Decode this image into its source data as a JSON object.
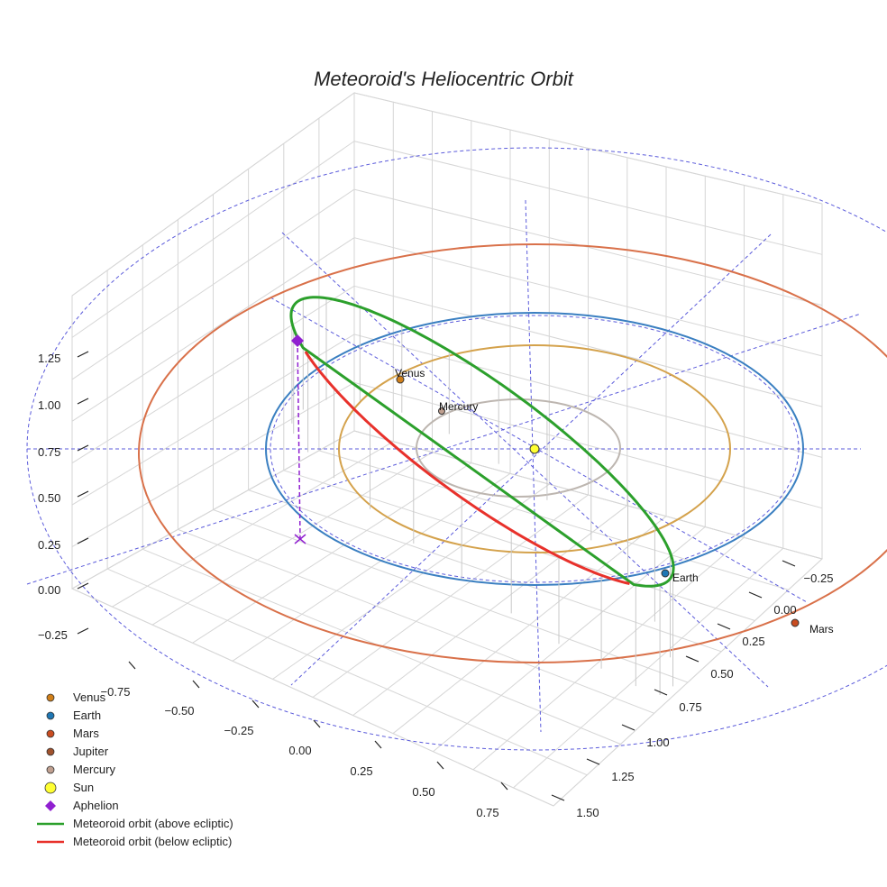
{
  "chart_data": {
    "type": "scatter3d",
    "title": "Meteoroid's Heliocentric Orbit",
    "axes": {
      "x_ticks": [
        "−0.75",
        "−0.50",
        "−0.25",
        "0.00",
        "0.25",
        "0.50",
        "0.75"
      ],
      "y_ticks": [
        "−0.25",
        "0.00",
        "0.25",
        "0.50",
        "0.75",
        "1.00",
        "1.25",
        "1.50"
      ],
      "z_ticks": [
        "−0.25",
        "0.00",
        "0.25",
        "0.50",
        "0.75",
        "1.00",
        "1.25"
      ],
      "grid": true
    },
    "orbits": [
      {
        "name": "Mercury",
        "semi_major_au": 0.387,
        "color": "#bdb6b0"
      },
      {
        "name": "Venus",
        "semi_major_au": 0.723,
        "color": "#d4a24c"
      },
      {
        "name": "Earth",
        "semi_major_au": 1.0,
        "color": "#3a7fc1"
      },
      {
        "name": "Mars",
        "semi_major_au": 1.524,
        "color": "#d9714a"
      }
    ],
    "bodies": [
      {
        "name": "Venus",
        "label": "Venus",
        "color": "#d07f1a"
      },
      {
        "name": "Mercury",
        "label": "Mercury",
        "color": "#c0a090"
      },
      {
        "name": "Earth",
        "label": "Earth",
        "color": "#1f77b4"
      },
      {
        "name": "Mars",
        "label": "Mars",
        "color": "#c94c20"
      },
      {
        "name": "Sun",
        "label": "",
        "color": "#ffff33"
      }
    ],
    "meteoroid_orbit": {
      "above_color": "#2ca02c",
      "below_color": "#e8312b",
      "aphelion_color": "#9020d0"
    },
    "legend": [
      {
        "label": "Venus",
        "symbol": "dot",
        "color": "#d07f1a"
      },
      {
        "label": "Earth",
        "symbol": "dot",
        "color": "#1f77b4"
      },
      {
        "label": "Mars",
        "symbol": "dot",
        "color": "#c94c20"
      },
      {
        "label": "Jupiter",
        "symbol": "dot",
        "color": "#a0522d"
      },
      {
        "label": "Mercury",
        "symbol": "dot",
        "color": "#c0a090"
      },
      {
        "label": "Sun",
        "symbol": "big-dot",
        "color": "#ffff33"
      },
      {
        "label": "Aphelion",
        "symbol": "diamond",
        "color": "#9020d0"
      },
      {
        "label": "Meteoroid orbit (above ecliptic)",
        "symbol": "line",
        "color": "#2ca02c"
      },
      {
        "label": "Meteoroid orbit (below ecliptic)",
        "symbol": "line",
        "color": "#e8312b"
      }
    ]
  }
}
